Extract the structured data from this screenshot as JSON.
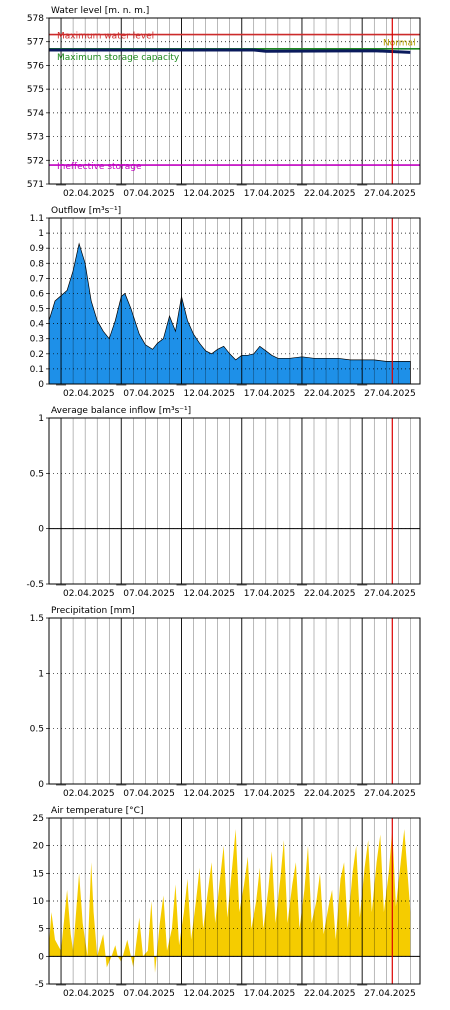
{
  "colors": {
    "grid_dotted": "#000000",
    "max_level": "#cc2b2b",
    "storage": "#1f8a1f",
    "ineffective": "#c000c0",
    "water_level_line": "#0a1a5c",
    "today_line": "#dd0000",
    "outflow_fill": "#1e90e8",
    "temperature_fill": "#f5cc00"
  },
  "chart_data": [
    {
      "id": "water-level",
      "type": "line",
      "title": "Water level [m. n. m.]",
      "x_tick_labels": [
        "02.04.2025",
        "07.04.2025",
        "12.04.2025",
        "17.04.2025",
        "22.04.2025",
        "27.04.2025"
      ],
      "ylim": [
        571,
        578
      ],
      "y_ticks": [
        571,
        572,
        573,
        574,
        575,
        576,
        577,
        578
      ],
      "reference_lines": [
        {
          "label": "Maximum water level",
          "value": 577.3,
          "color": "#cc2b2b"
        },
        {
          "label": "Maximum storage capacity",
          "value": 576.7,
          "color": "#1f8a1f"
        },
        {
          "label": "Ineffective storage",
          "value": 571.8,
          "color": "#c000c0"
        }
      ],
      "extra_label": "Normal",
      "series": [
        {
          "values": [
            [
              1,
              576.65
            ],
            [
              18,
              576.65
            ],
            [
              19,
              576.6
            ],
            [
              28,
              576.62
            ],
            [
              31,
              576.55
            ]
          ]
        }
      ]
    },
    {
      "id": "outflow",
      "type": "area",
      "title": "Outflow [m³s⁻¹]",
      "x_tick_labels": [
        "02.04.2025",
        "07.04.2025",
        "12.04.2025",
        "17.04.2025",
        "22.04.2025",
        "27.04.2025"
      ],
      "ylim": [
        0,
        1.1
      ],
      "y_ticks": [
        0,
        0.1,
        0.2,
        0.3,
        0.4,
        0.5,
        0.6,
        0.7,
        0.8,
        0.9,
        1,
        1.1
      ],
      "series": [
        {
          "values": [
            [
              1,
              0.42
            ],
            [
              1.5,
              0.55
            ],
            [
              2.5,
              0.62
            ],
            [
              3,
              0.75
            ],
            [
              3.5,
              0.93
            ],
            [
              4,
              0.8
            ],
            [
              4.5,
              0.55
            ],
            [
              5,
              0.42
            ],
            [
              5.5,
              0.35
            ],
            [
              6,
              0.3
            ],
            [
              6.5,
              0.42
            ],
            [
              7,
              0.58
            ],
            [
              7.3,
              0.6
            ],
            [
              7.8,
              0.5
            ],
            [
              8.5,
              0.33
            ],
            [
              9,
              0.26
            ],
            [
              9.6,
              0.23
            ],
            [
              10,
              0.27
            ],
            [
              10.5,
              0.3
            ],
            [
              11,
              0.45
            ],
            [
              11.5,
              0.35
            ],
            [
              12,
              0.58
            ],
            [
              12.5,
              0.42
            ],
            [
              13,
              0.33
            ],
            [
              13.5,
              0.27
            ],
            [
              14,
              0.22
            ],
            [
              14.5,
              0.2
            ],
            [
              15,
              0.23
            ],
            [
              15.5,
              0.25
            ],
            [
              16,
              0.2
            ],
            [
              16.5,
              0.16
            ],
            [
              17,
              0.19
            ],
            [
              17.5,
              0.19
            ],
            [
              18,
              0.2
            ],
            [
              18.5,
              0.25
            ],
            [
              19,
              0.22
            ],
            [
              19.5,
              0.19
            ],
            [
              20,
              0.17
            ],
            [
              21,
              0.17
            ],
            [
              22,
              0.18
            ],
            [
              23,
              0.17
            ],
            [
              24,
              0.17
            ],
            [
              25,
              0.17
            ],
            [
              26,
              0.16
            ],
            [
              27,
              0.16
            ],
            [
              28,
              0.16
            ],
            [
              29,
              0.15
            ],
            [
              30,
              0.15
            ],
            [
              31,
              0.15
            ]
          ]
        }
      ]
    },
    {
      "id": "balance-inflow",
      "type": "line",
      "title": "Average balance inflow  [m³s⁻¹]",
      "x_tick_labels": [
        "02.04.2025",
        "07.04.2025",
        "12.04.2025",
        "17.04.2025",
        "22.04.2025",
        "27.04.2025"
      ],
      "ylim": [
        -0.5,
        1
      ],
      "y_ticks": [
        -0.5,
        0,
        0.5,
        1
      ],
      "series": []
    },
    {
      "id": "precipitation",
      "type": "bar",
      "title": "Precipitation [mm]",
      "x_tick_labels": [
        "02.04.2025",
        "07.04.2025",
        "12.04.2025",
        "17.04.2025",
        "22.04.2025",
        "27.04.2025"
      ],
      "ylim": [
        0,
        1.5
      ],
      "y_ticks": [
        0,
        0.5,
        1,
        1.5
      ],
      "series": []
    },
    {
      "id": "air-temperature",
      "type": "area",
      "title": "Air temperature [°C]",
      "x_tick_labels": [
        "02.04.2025",
        "07.04.2025",
        "12.04.2025",
        "17.04.2025",
        "22.04.2025",
        "27.04.2025"
      ],
      "ylim": [
        -5,
        25
      ],
      "y_ticks": [
        -5,
        0,
        5,
        10,
        15,
        20,
        25
      ],
      "series": [
        {
          "values": [
            [
              1,
              2
            ],
            [
              1.2,
              8
            ],
            [
              1.5,
              3
            ],
            [
              2,
              1
            ],
            [
              2.5,
              12
            ],
            [
              2.8,
              4
            ],
            [
              3,
              1
            ],
            [
              3.5,
              15
            ],
            [
              3.8,
              6
            ],
            [
              4.2,
              0
            ],
            [
              4.5,
              17
            ],
            [
              4.7,
              8
            ],
            [
              5,
              0
            ],
            [
              5.5,
              4
            ],
            [
              5.8,
              -2
            ],
            [
              6.2,
              0
            ],
            [
              6.5,
              2
            ],
            [
              6.7,
              0
            ],
            [
              7,
              -1
            ],
            [
              7.5,
              3
            ],
            [
              7.8,
              0
            ],
            [
              8,
              -2
            ],
            [
              8.5,
              7
            ],
            [
              8.8,
              0
            ],
            [
              9.2,
              1
            ],
            [
              9.5,
              10
            ],
            [
              9.8,
              -3
            ],
            [
              10.2,
              6
            ],
            [
              10.5,
              11
            ],
            [
              10.8,
              1
            ],
            [
              11.2,
              5
            ],
            [
              11.5,
              13
            ],
            [
              11.8,
              2
            ],
            [
              12.2,
              8
            ],
            [
              12.5,
              14
            ],
            [
              12.8,
              3
            ],
            [
              13.2,
              10
            ],
            [
              13.5,
              16
            ],
            [
              13.8,
              5
            ],
            [
              14.2,
              12
            ],
            [
              14.5,
              17
            ],
            [
              14.8,
              6
            ],
            [
              15.2,
              14
            ],
            [
              15.5,
              20
            ],
            [
              15.8,
              7
            ],
            [
              16.2,
              16
            ],
            [
              16.5,
              23
            ],
            [
              16.8,
              8
            ],
            [
              17.2,
              13
            ],
            [
              17.5,
              18
            ],
            [
              17.8,
              5
            ],
            [
              18.2,
              10
            ],
            [
              18.5,
              16
            ],
            [
              18.8,
              5
            ],
            [
              19.2,
              12
            ],
            [
              19.5,
              19
            ],
            [
              19.8,
              6
            ],
            [
              20.2,
              14
            ],
            [
              20.5,
              21
            ],
            [
              20.8,
              6
            ],
            [
              21.2,
              13
            ],
            [
              21.5,
              17
            ],
            [
              21.8,
              5
            ],
            [
              22.2,
              12
            ],
            [
              22.5,
              20
            ],
            [
              22.8,
              6
            ],
            [
              23.2,
              10
            ],
            [
              23.5,
              15
            ],
            [
              23.8,
              4
            ],
            [
              24.2,
              9
            ],
            [
              24.5,
              12
            ],
            [
              24.8,
              3
            ],
            [
              25.2,
              14
            ],
            [
              25.5,
              17
            ],
            [
              25.8,
              5
            ],
            [
              26.2,
              15
            ],
            [
              26.5,
              20
            ],
            [
              26.8,
              7
            ],
            [
              27.2,
              16
            ],
            [
              27.5,
              21
            ],
            [
              27.8,
              8
            ],
            [
              28.2,
              17
            ],
            [
              28.5,
              22
            ],
            [
              28.8,
              8
            ],
            [
              29.2,
              15
            ],
            [
              29.5,
              23
            ],
            [
              29.8,
              9
            ],
            [
              30.2,
              17
            ],
            [
              30.5,
              23
            ],
            [
              31,
              8
            ]
          ]
        }
      ]
    }
  ]
}
